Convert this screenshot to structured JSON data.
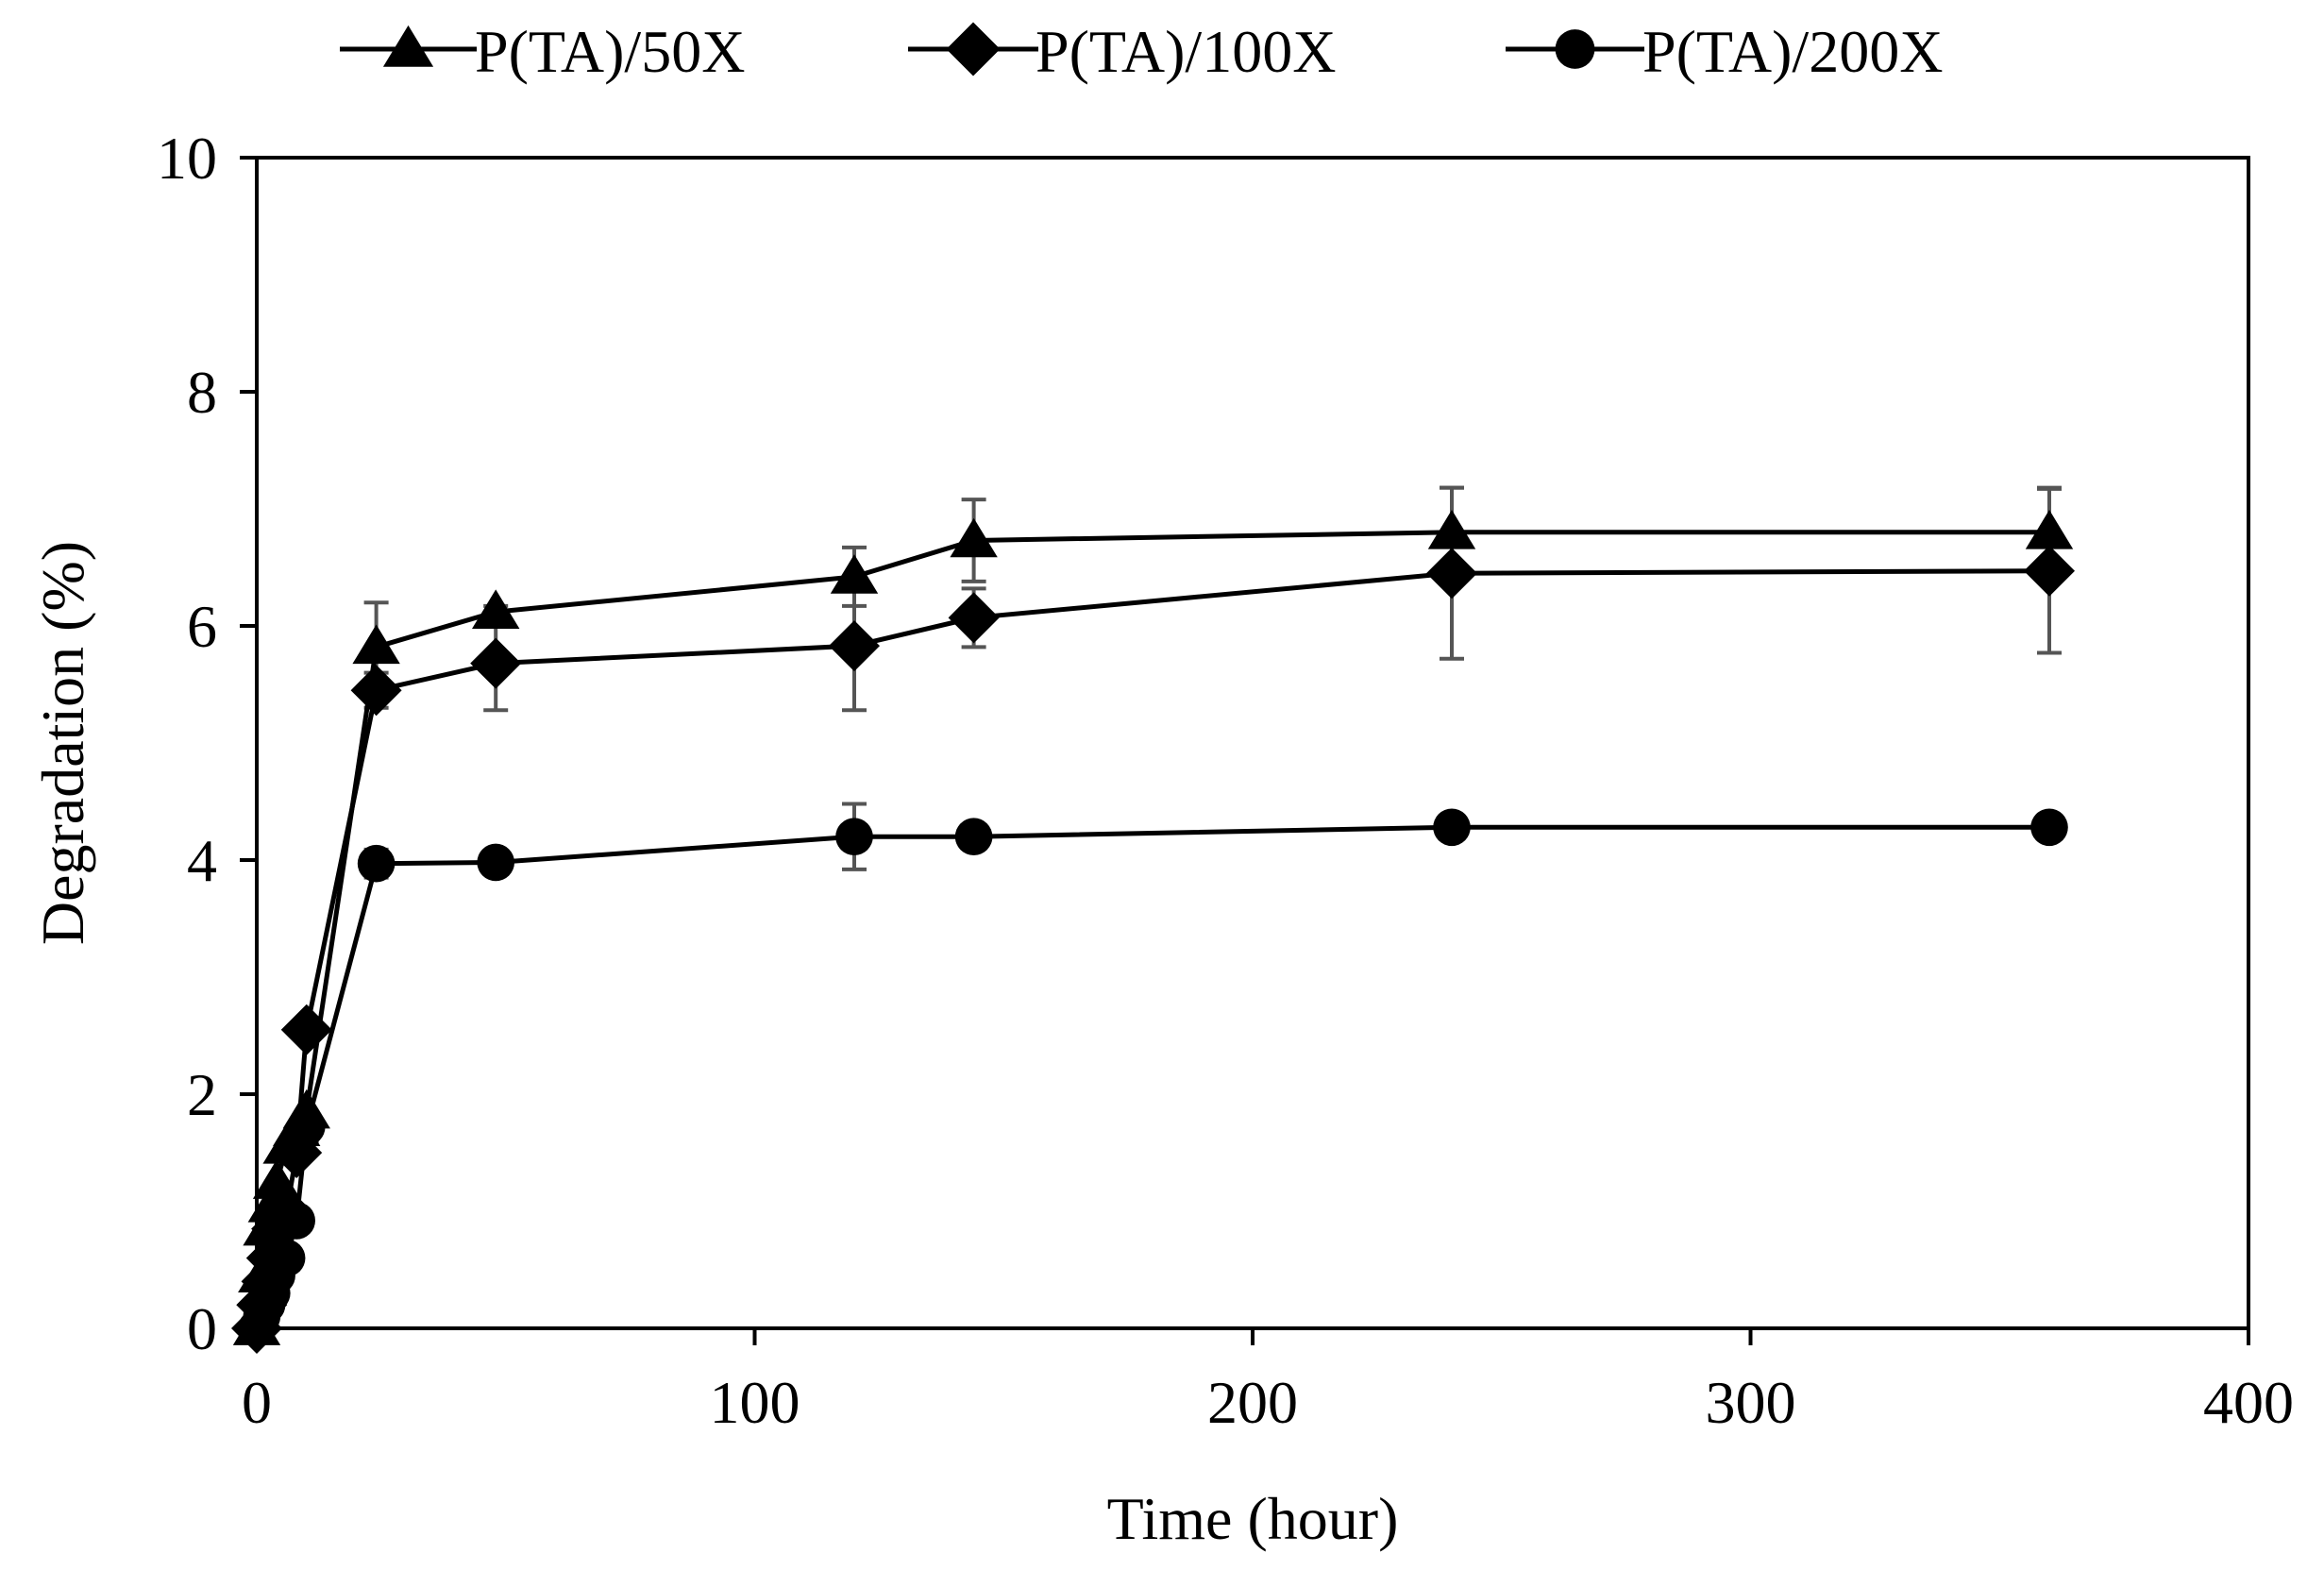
{
  "chart_data": {
    "type": "line",
    "title": "",
    "xlabel": "Time (hour)",
    "ylabel": "Degradation (%)",
    "xlim": [
      0,
      400
    ],
    "ylim": [
      0,
      10
    ],
    "xticks": [
      0,
      100,
      200,
      300,
      400
    ],
    "yticks": [
      0,
      2,
      4,
      6,
      8,
      10
    ],
    "legend_position": "top",
    "grid": false,
    "series": [
      {
        "name": "P(TA)/50X",
        "marker": "triangle",
        "x": [
          0,
          1,
          2,
          3,
          4,
          6,
          8,
          10,
          24,
          48,
          120,
          144,
          240,
          360
        ],
        "y": [
          0,
          0.45,
          0.85,
          1.05,
          1.25,
          1.55,
          1.7,
          1.85,
          5.82,
          6.12,
          6.42,
          6.73,
          6.8,
          6.8
        ],
        "err": [
          0,
          0,
          0,
          0,
          0,
          0,
          0,
          0,
          0.38,
          0.05,
          0.25,
          0.35,
          0.38,
          0.38
        ]
      },
      {
        "name": "P(TA)/100X",
        "marker": "diamond",
        "x": [
          0,
          1,
          2,
          3,
          4,
          6,
          8,
          10,
          24,
          48,
          120,
          144,
          240,
          360
        ],
        "y": [
          0,
          0.2,
          0.4,
          0.6,
          0.85,
          1.0,
          1.5,
          2.55,
          5.45,
          5.68,
          5.83,
          6.07,
          6.45,
          6.47
        ],
        "err": [
          0,
          0,
          0,
          0,
          0,
          0,
          0,
          0,
          0.15,
          0.4,
          0.55,
          0.25,
          0.73,
          0.7
        ]
      },
      {
        "name": "P(TA)/200X",
        "marker": "circle",
        "x": [
          0,
          1,
          2,
          3,
          4,
          6,
          8,
          10,
          24,
          48,
          120,
          144,
          240,
          360
        ],
        "y": [
          0,
          0.1,
          0.2,
          0.3,
          0.45,
          0.6,
          0.92,
          1.72,
          3.97,
          3.98,
          4.2,
          4.2,
          4.28,
          4.28
        ],
        "err": [
          0,
          0,
          0,
          0,
          0,
          0,
          0,
          0.12,
          0.12,
          0.05,
          0.28,
          0.05,
          0.05,
          0.05
        ]
      }
    ]
  }
}
